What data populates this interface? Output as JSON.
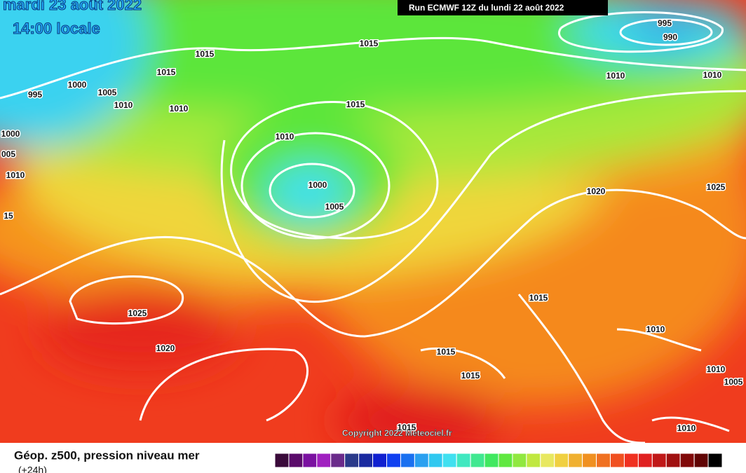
{
  "header": {
    "date": "mardi 23 août 2022",
    "time": "14:00 locale",
    "run": "Run ECMWF 12Z du lundi 22 août 2022"
  },
  "isobar_labels": [
    "995",
    "1000",
    "1005",
    "1010",
    "1015",
    "1015",
    "1010",
    "1015",
    "1015",
    "1010",
    "1000",
    "1005",
    "995",
    "990",
    "1010",
    "1010",
    "1020",
    "1025",
    "1025",
    "1020",
    "1015",
    "1010",
    "1015",
    "1015",
    "1010",
    "1005",
    "1010",
    "1015",
    "1000",
    "005",
    "1010",
    "15"
  ],
  "copyright": "Copyright 2022 Meteociel.fr",
  "legend": {
    "title": "Géop. z500, pression niveau mer",
    "subtitle": "(+24h)"
  }
}
